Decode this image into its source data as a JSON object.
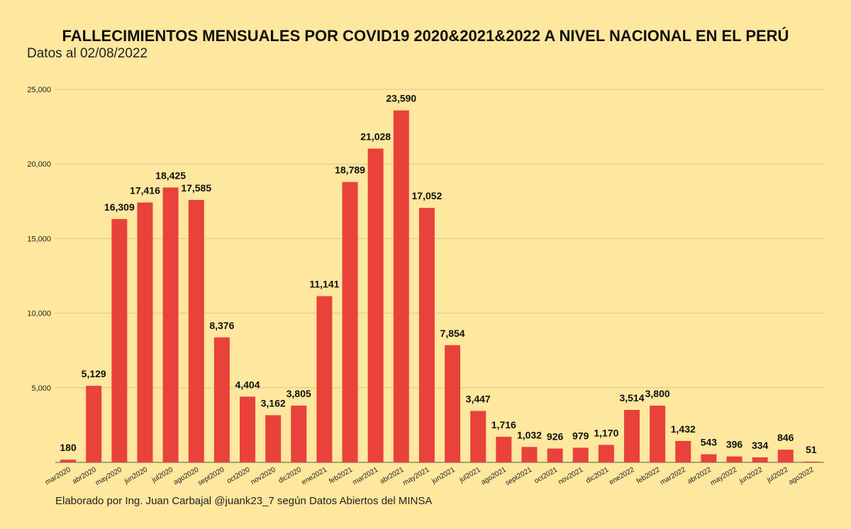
{
  "chart_data": {
    "type": "bar",
    "title": "FALLECIMIENTOS MENSUALES POR COVID19 2020&2021&2022 A NIVEL NACIONAL EN EL PERÚ",
    "subtitle": "Datos al 02/08/2022",
    "footer": "Elaborado por Ing. Juan Carbajal @juank23_7 según Datos Abiertos del MINSA",
    "categories": [
      "mar2020",
      "abr2020",
      "may2020",
      "jun2020",
      "jul2020",
      "ago2020",
      "sept2020",
      "oct2020",
      "nov2020",
      "dic2020",
      "ene2021",
      "feb2021",
      "mar2021",
      "abr2021",
      "may2021",
      "jun2021",
      "jul2021",
      "ago2021",
      "sept2021",
      "oct2021",
      "nov2021",
      "dic2021",
      "ene2022",
      "feb2022",
      "mar2022",
      "abr2022",
      "may2022",
      "jun2022",
      "jul2022",
      "ago2022"
    ],
    "values": [
      180,
      5129,
      16309,
      17416,
      18425,
      17585,
      8376,
      4404,
      3162,
      3805,
      11141,
      18789,
      21028,
      23590,
      17052,
      7854,
      3447,
      1716,
      1032,
      926,
      979,
      1170,
      3514,
      3800,
      1432,
      543,
      396,
      334,
      846,
      51
    ],
    "data_labels": [
      "180",
      "5,129",
      "16,309",
      "17,416",
      "18,425",
      "17,585",
      "8,376",
      "4,404",
      "3,162",
      "3,805",
      "11,141",
      "18,789",
      "21,028",
      "23,590",
      "17,052",
      "7,854",
      "3,447",
      "1,716",
      "1,032",
      "926",
      "979",
      "1,170",
      "3,514",
      "3,800",
      "1,432",
      "543",
      "396",
      "334",
      "846",
      "51"
    ],
    "yticks": [
      5000,
      10000,
      15000,
      20000,
      25000
    ],
    "ytick_labels": [
      "5,000",
      "10,000",
      "15,000",
      "20,000",
      "25,000"
    ],
    "ylim": [
      0,
      25000
    ],
    "grid": true,
    "xlabel": "",
    "ylabel": "",
    "colors": {
      "bar": "#e8423a",
      "background": "#fee79e",
      "grid": "#d9c98c"
    }
  }
}
